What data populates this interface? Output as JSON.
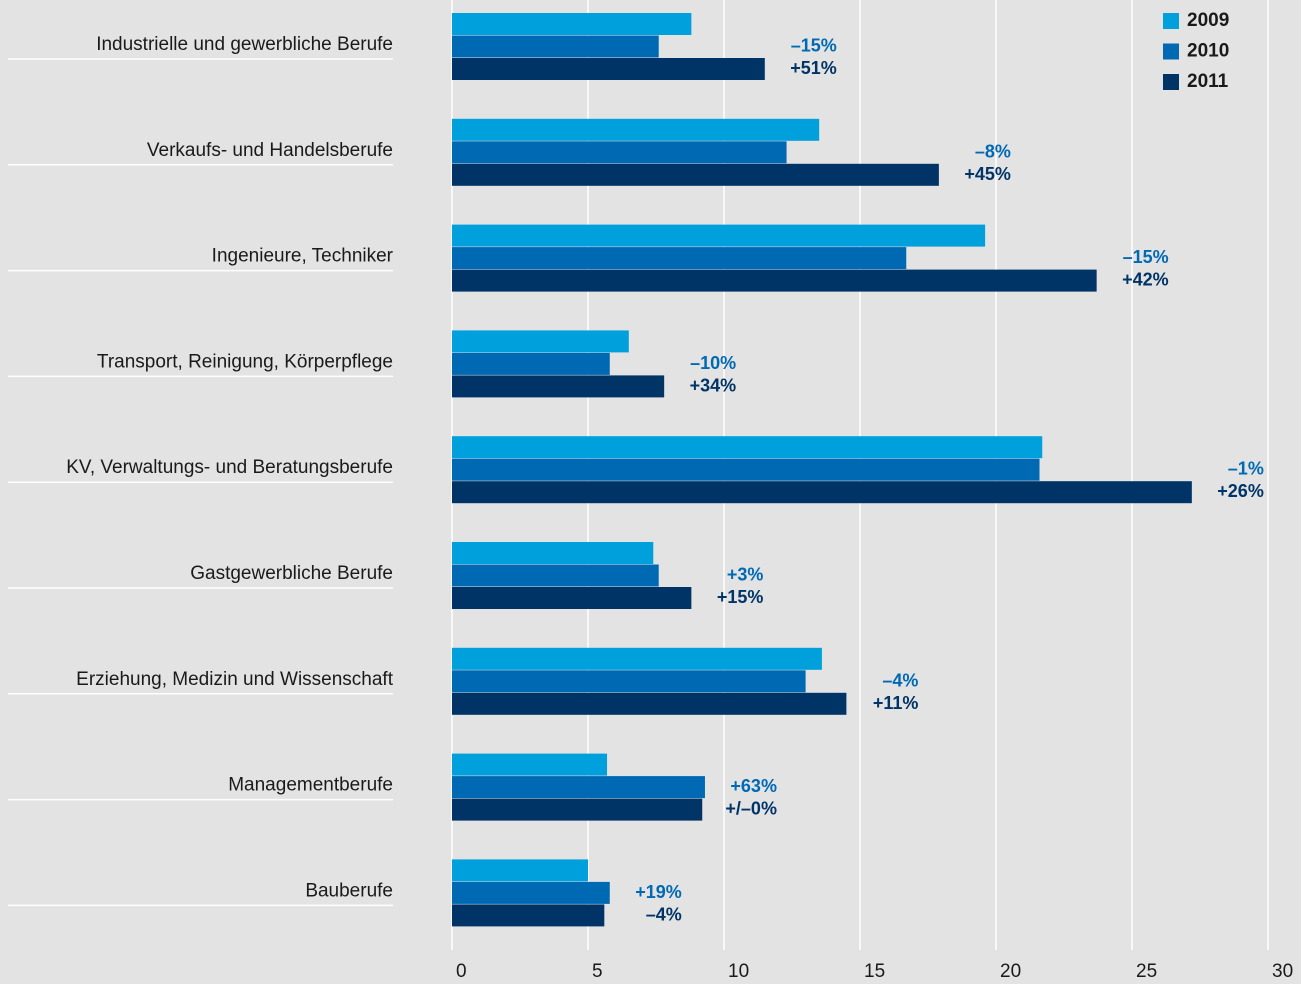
{
  "chart_data": {
    "type": "bar",
    "orientation": "horizontal",
    "categories": [
      "Industrielle und gewerbliche Berufe",
      "Verkaufs- und Handelsberufe",
      "Ingenieure, Techniker",
      "Transport, Reinigung, Körperpflege",
      "KV, Verwaltungs- und Beratungsberufe",
      "Gastgewerbliche Berufe",
      "Erziehung, Medizin und Wissenschaft",
      "Managementberufe",
      "Bauberufe"
    ],
    "series": [
      {
        "name": "2009",
        "color": "#00a0dc",
        "values": [
          8.8,
          13.5,
          19.6,
          6.5,
          21.7,
          7.4,
          13.6,
          5.7,
          5.0
        ]
      },
      {
        "name": "2010",
        "color": "#0069b4",
        "values": [
          7.6,
          12.3,
          16.7,
          5.8,
          21.6,
          7.6,
          13.0,
          9.3,
          5.8
        ]
      },
      {
        "name": "2011",
        "color": "#003466",
        "values": [
          11.5,
          17.9,
          23.7,
          7.8,
          27.2,
          8.8,
          14.5,
          9.2,
          5.6
        ]
      }
    ],
    "annotations": [
      [
        "–15%",
        "+51%"
      ],
      [
        "–8%",
        "+45%"
      ],
      [
        "–15%",
        "+42%"
      ],
      [
        "–10%",
        "+34%"
      ],
      [
        "–1%",
        "+26%"
      ],
      [
        "+3%",
        "+15%"
      ],
      [
        "–4%",
        "+11%"
      ],
      [
        "+63%",
        "+/–0%"
      ],
      [
        "+19%",
        "–4%"
      ]
    ],
    "xlim": [
      0,
      30
    ],
    "xticks": [
      0,
      5,
      10,
      15,
      20,
      25,
      30
    ],
    "grid": true,
    "legend": "top-right"
  }
}
